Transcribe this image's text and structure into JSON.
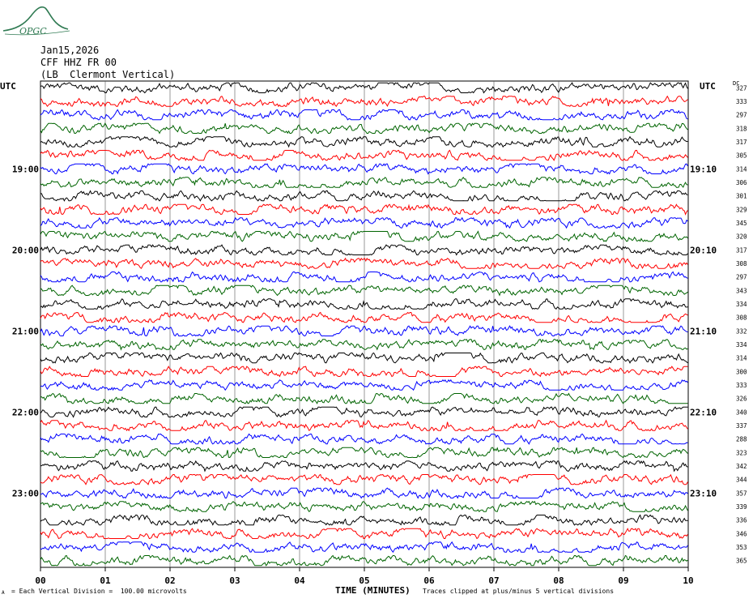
{
  "logo": {
    "text": "OPGC",
    "color": "#2f7a52"
  },
  "header": {
    "date": "Jan15,2026",
    "station": "CFF HHZ FR 00",
    "location": "(LB  Clermont Vertical)"
  },
  "utc_left": "UTC",
  "utc_right": "UTC",
  "dc_label": "DC",
  "footer": {
    "scale": "= Each Vertical Division =  100.00 microvolts",
    "clip": "Traces clipped at plus/minus 5 vertical divisions",
    "corner": "A"
  },
  "chart_data": {
    "type": "line",
    "xlabel": "TIME (MINUTES)",
    "x_ticks": [
      "00",
      "01",
      "02",
      "03",
      "04",
      "05",
      "06",
      "07",
      "08",
      "09",
      "10"
    ],
    "xlim": [
      0,
      10
    ],
    "trace_colors": [
      "#000000",
      "#ff0000",
      "#0000ff",
      "#006400"
    ],
    "left_time_labels": [
      {
        "row": 6,
        "label": "19:00"
      },
      {
        "row": 12,
        "label": "20:00"
      },
      {
        "row": 18,
        "label": "21:00"
      },
      {
        "row": 24,
        "label": "22:00"
      },
      {
        "row": 30,
        "label": "23:00"
      }
    ],
    "right_time_labels": [
      {
        "row": 6,
        "label": "19:10"
      },
      {
        "row": 12,
        "label": "20:10"
      },
      {
        "row": 18,
        "label": "21:10"
      },
      {
        "row": 24,
        "label": "22:10"
      },
      {
        "row": 30,
        "label": "23:10"
      }
    ],
    "dc_offsets": [
      327,
      333,
      297,
      318,
      317,
      305,
      314,
      306,
      301,
      329,
      345,
      320,
      317,
      308,
      297,
      343,
      334,
      308,
      332,
      334,
      314,
      300,
      333,
      326,
      340,
      337,
      288,
      323,
      342,
      344,
      357,
      339,
      336,
      346,
      353,
      365
    ]
  }
}
